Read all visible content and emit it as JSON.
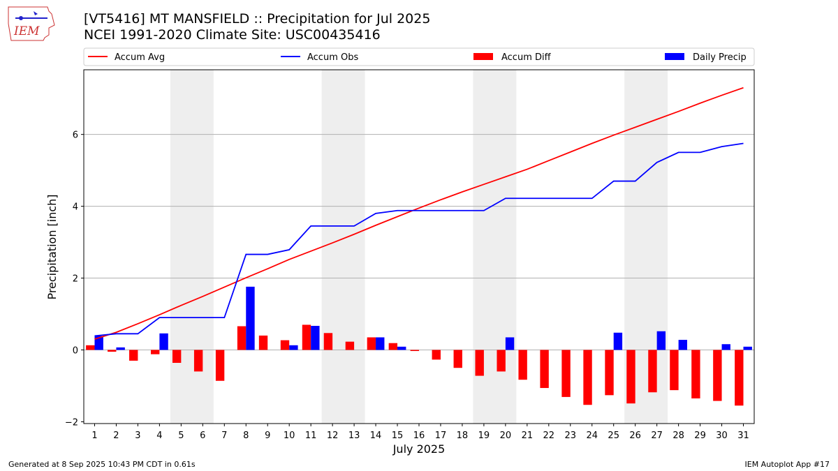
{
  "header": {
    "title_line1": "[VT5416] MT MANSFIELD :: Precipitation for Jul 2025",
    "title_line2": "NCEI 1991-2020 Climate Site: USC00435416",
    "logo_text": "IEM"
  },
  "footer": {
    "left": "Generated at 8 Sep 2025 10:43 PM CDT in 0.61s",
    "right": "IEM Autoplot App #17"
  },
  "chart_data": {
    "type": "bar",
    "xlabel": "July 2025",
    "ylabel": "Precipitation [inch]",
    "x": [
      1,
      2,
      3,
      4,
      5,
      6,
      7,
      8,
      9,
      10,
      11,
      12,
      13,
      14,
      15,
      16,
      17,
      18,
      19,
      20,
      21,
      22,
      23,
      24,
      25,
      26,
      27,
      28,
      29,
      30,
      31
    ],
    "xlim": [
      0.5,
      31.5
    ],
    "ylim": [
      -2.05,
      7.8
    ],
    "yticks": [
      -2,
      0,
      2,
      4,
      6
    ],
    "grid": "horizontal",
    "legend_position": "top",
    "weekend_shading": [
      [
        4.5,
        6.5
      ],
      [
        11.5,
        13.5
      ],
      [
        18.5,
        20.5
      ],
      [
        25.5,
        27.5
      ]
    ],
    "colors": {
      "avg": "#ff0000",
      "obs": "#0000ff",
      "diff": "#ff0000",
      "daily": "#0000ff",
      "shade": "#eeeeee",
      "grid": "#b0b0b0"
    },
    "series": [
      {
        "name": "Accum Avg",
        "kind": "line",
        "values": [
          0.3,
          0.49,
          0.73,
          0.98,
          1.24,
          1.49,
          1.75,
          2.01,
          2.26,
          2.52,
          2.75,
          2.98,
          3.22,
          3.47,
          3.71,
          3.95,
          4.18,
          4.4,
          4.61,
          4.82,
          5.03,
          5.27,
          5.51,
          5.75,
          5.98,
          6.2,
          6.42,
          6.64,
          6.87,
          7.09,
          7.3
        ]
      },
      {
        "name": "Accum Obs",
        "kind": "line",
        "values": [
          0.39,
          0.45,
          0.45,
          0.9,
          0.9,
          0.9,
          0.9,
          2.66,
          2.66,
          2.79,
          3.45,
          3.45,
          3.45,
          3.8,
          3.88,
          3.88,
          3.88,
          3.88,
          3.88,
          4.22,
          4.22,
          4.22,
          4.22,
          4.22,
          4.7,
          4.7,
          5.22,
          5.5,
          5.5,
          5.66,
          5.75
        ]
      },
      {
        "name": "Accum Diff",
        "kind": "bar",
        "values": [
          0.13,
          -0.05,
          -0.3,
          -0.12,
          -0.36,
          -0.6,
          -0.86,
          0.66,
          0.4,
          0.27,
          0.7,
          0.47,
          0.23,
          0.35,
          0.19,
          -0.03,
          -0.27,
          -0.5,
          -0.72,
          -0.6,
          -0.83,
          -1.06,
          -1.31,
          -1.53,
          -1.26,
          -1.49,
          -1.18,
          -1.12,
          -1.35,
          -1.42,
          -1.55
        ]
      },
      {
        "name": "Daily Precip",
        "kind": "bar",
        "values": [
          0.39,
          0.07,
          0.0,
          0.46,
          0.0,
          0.0,
          0.0,
          1.76,
          0.0,
          0.13,
          0.67,
          0.0,
          0.0,
          0.35,
          0.09,
          0.0,
          0.0,
          0.0,
          0.0,
          0.35,
          0.0,
          0.0,
          0.0,
          0.0,
          0.48,
          0.0,
          0.52,
          0.28,
          0.0,
          0.16,
          0.09
        ]
      }
    ]
  }
}
